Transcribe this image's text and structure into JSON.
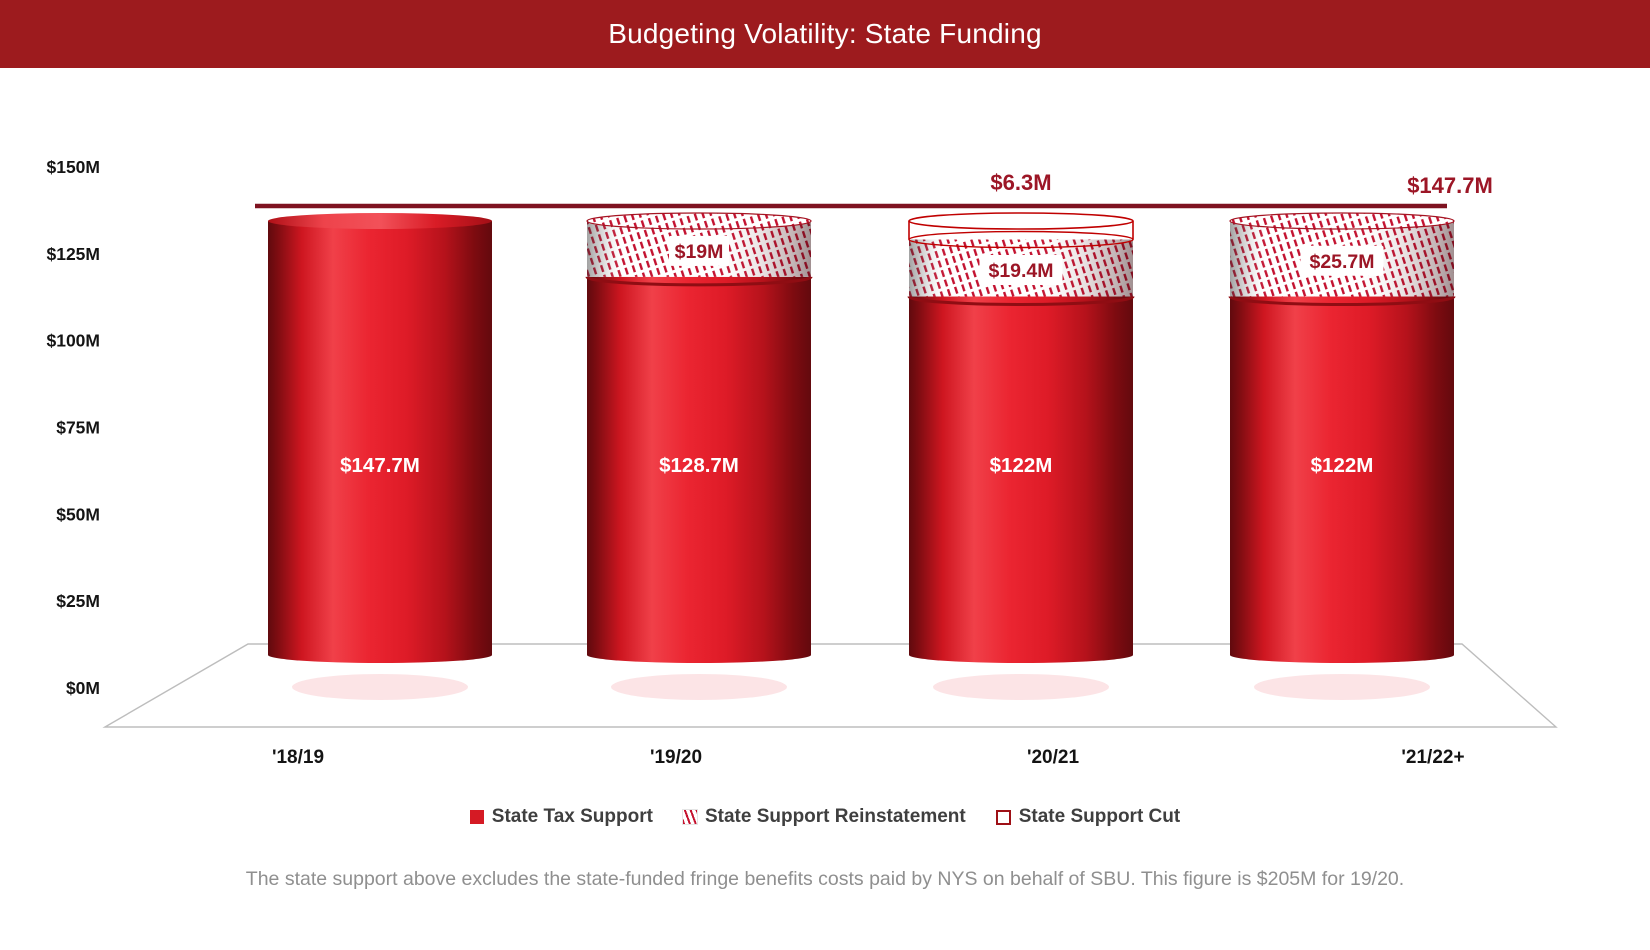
{
  "title_bar": {
    "text": "Budgeting Volatility: State Funding",
    "bg_color": "#9d1b1e",
    "text_color": "#ffffff"
  },
  "chart_data": {
    "type": "bar",
    "subtype": "3d-cylinder-stacked",
    "title": "Budgeting Volatility: State Funding",
    "categories": [
      "'18/19",
      "'19/20",
      "'20/21",
      "'21/22+"
    ],
    "series": [
      {
        "name": "State Tax Support",
        "style": "solid-red",
        "values": [
          147.7,
          128.7,
          122,
          122
        ],
        "labels": [
          "$147.7M",
          "$128.7M",
          "$122M",
          "$122M"
        ]
      },
      {
        "name": "State Support Reinstatement",
        "style": "hatched",
        "values": [
          0,
          19,
          19.4,
          25.7
        ],
        "labels": [
          "",
          "$19M",
          "$19.4M",
          "$25.7M"
        ]
      },
      {
        "name": "State Support Cut",
        "style": "outline",
        "values": [
          0,
          0,
          6.3,
          0
        ],
        "labels": [
          "",
          "",
          "$6.3M",
          ""
        ]
      }
    ],
    "ylabel_ticks": [
      "$0M",
      "$25M",
      "$50M",
      "$75M",
      "$100M",
      "$125M",
      "$150M"
    ],
    "tick_values": [
      0,
      25,
      50,
      75,
      100,
      125,
      150
    ],
    "ylim": [
      0,
      150
    ],
    "grid": false,
    "legend_position": "bottom",
    "reference_line": {
      "value": 147.7,
      "label": "$147.7M",
      "color": "#7e1220"
    }
  },
  "legend": {
    "items": [
      {
        "label": "State Tax Support",
        "swatch": "solid"
      },
      {
        "label": "State Support Reinstatement",
        "swatch": "hatched"
      },
      {
        "label": "State Support Cut",
        "swatch": "outline"
      }
    ]
  },
  "footnote": {
    "text": "The state support above excludes the state-funded fringe benefits costs paid by NYS on behalf of SBU. This figure is $205M for 19/20."
  },
  "colors": {
    "title_bar_bg": "#9d1b1e",
    "bar_red": "#e32530",
    "hatch_red": "#c31230",
    "reference_line": "#7e1220",
    "annotation_red": "#9c1626",
    "legend_text": "#3f3f3f",
    "footnote_gray": "#8f8f8f"
  }
}
